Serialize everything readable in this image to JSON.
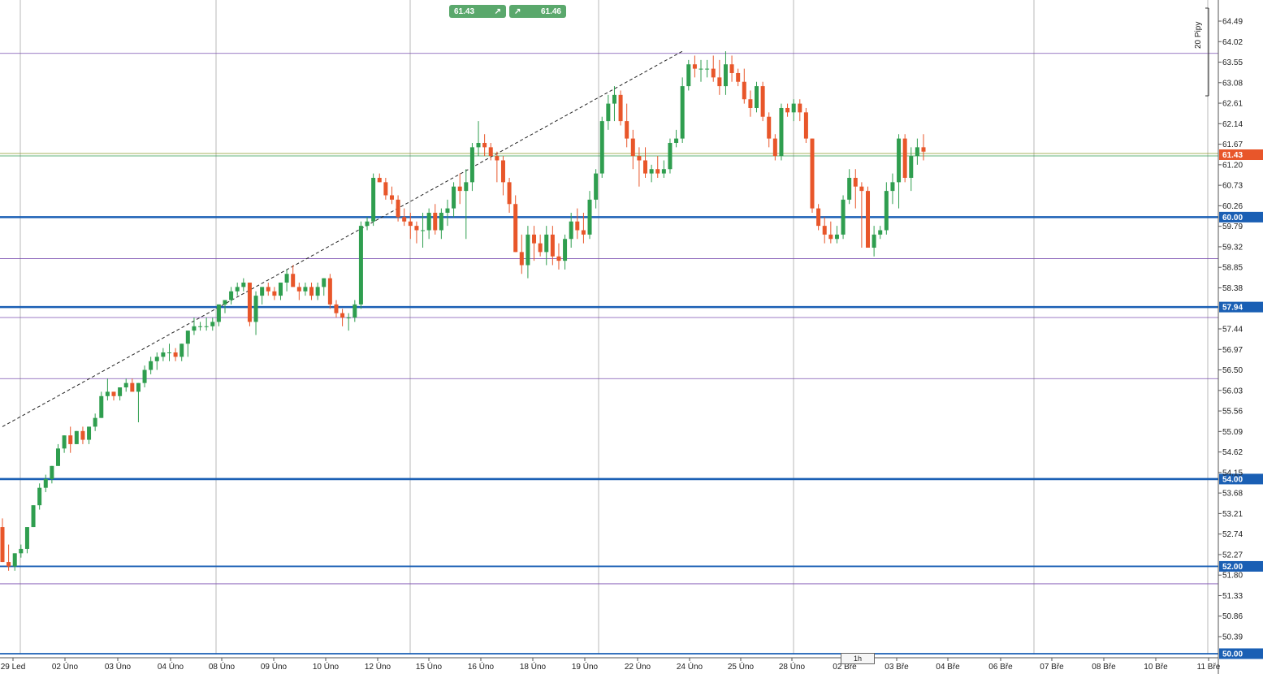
{
  "trade": {
    "sell_price": "61.43",
    "buy_price": "61.46",
    "sell_icon": "arrow-up-right-icon",
    "buy_icon": "arrow-up-right-icon"
  },
  "ruler": {
    "label": "20 Pipy"
  },
  "timeframe": {
    "label": "1h"
  },
  "chart_data": {
    "type": "candlestick",
    "title": "",
    "current_price": 61.43,
    "y_ticks": [
      64.49,
      64.02,
      63.55,
      63.08,
      62.61,
      62.14,
      61.67,
      61.2,
      60.73,
      60.26,
      59.79,
      59.32,
      58.85,
      58.38,
      57.44,
      56.97,
      56.5,
      56.03,
      55.56,
      55.09,
      54.62,
      54.15,
      53.68,
      53.21,
      52.74,
      52.27,
      51.8,
      51.33,
      50.86,
      50.39
    ],
    "x_labels": [
      "29 Led",
      "02 Úno",
      "03 Úno",
      "04 Úno",
      "08 Úno",
      "09 Úno",
      "10 Úno",
      "12 Úno",
      "15 Úno",
      "16 Úno",
      "18 Úno",
      "19 Úno",
      "22 Úno",
      "24 Úno",
      "25 Úno",
      "28 Úno",
      "02 Bře",
      "03 Bře",
      "04 Bře",
      "06 Bře",
      "07 Bře",
      "08 Bře",
      "10 Bře",
      "11 Bře"
    ],
    "levels": [
      {
        "price": 60.0,
        "label": "60.00",
        "color": "#1a5fb4",
        "style": "thick"
      },
      {
        "price": 57.94,
        "label": "57.94",
        "color": "#1a5fb4",
        "style": "thick"
      },
      {
        "price": 54.0,
        "label": "54.00",
        "color": "#1a5fb4",
        "style": "thick"
      },
      {
        "price": 52.0,
        "label": "52.00",
        "color": "#1a5fb4",
        "style": "medium"
      },
      {
        "price": 50.0,
        "label": "50.00",
        "color": "#1a5fb4",
        "style": "medium"
      },
      {
        "price": 63.75,
        "label": "",
        "color": "#7b4fb0",
        "style": "thin"
      },
      {
        "price": 59.05,
        "label": "",
        "color": "#7b4fb0",
        "style": "thin"
      },
      {
        "price": 57.7,
        "label": "",
        "color": "#7b4fb0",
        "style": "thin"
      },
      {
        "price": 56.3,
        "label": "",
        "color": "#7b4fb0",
        "style": "thin"
      },
      {
        "price": 51.6,
        "label": "",
        "color": "#7b4fb0",
        "style": "thin"
      },
      {
        "price": 61.43,
        "label": "61.43",
        "color": "#e8562a",
        "style": "price"
      }
    ],
    "trendline": {
      "from": [
        0,
        55.2
      ],
      "to": [
        110,
        63.8
      ]
    },
    "candles": [
      [
        52.9,
        53.1,
        52.1,
        52.1
      ],
      [
        52.1,
        52.5,
        51.9,
        52.0
      ],
      [
        52.0,
        52.3,
        51.9,
        52.3
      ],
      [
        52.3,
        52.5,
        52.2,
        52.4
      ],
      [
        52.4,
        52.9,
        52.3,
        52.9
      ],
      [
        52.9,
        53.4,
        52.9,
        53.4
      ],
      [
        53.4,
        53.9,
        53.3,
        53.8
      ],
      [
        53.8,
        54.1,
        53.7,
        54.0
      ],
      [
        54.0,
        54.3,
        53.9,
        54.3
      ],
      [
        54.3,
        54.8,
        54.3,
        54.7
      ],
      [
        54.7,
        55.0,
        54.6,
        55.0
      ],
      [
        55.0,
        55.2,
        54.6,
        54.8
      ],
      [
        54.8,
        55.1,
        54.8,
        55.1
      ],
      [
        55.1,
        55.2,
        54.8,
        54.9
      ],
      [
        54.9,
        55.2,
        54.8,
        55.2
      ],
      [
        55.2,
        55.5,
        55.1,
        55.4
      ],
      [
        55.4,
        56.0,
        55.4,
        55.9
      ],
      [
        55.9,
        56.3,
        55.8,
        56.0
      ],
      [
        56.0,
        56.0,
        55.8,
        55.9
      ],
      [
        55.9,
        56.1,
        55.8,
        56.1
      ],
      [
        56.1,
        56.3,
        56.0,
        56.2
      ],
      [
        56.2,
        56.3,
        56.1,
        56.0
      ],
      [
        56.0,
        56.2,
        55.3,
        56.2
      ],
      [
        56.2,
        56.6,
        56.1,
        56.5
      ],
      [
        56.5,
        56.8,
        56.4,
        56.7
      ],
      [
        56.7,
        56.9,
        56.5,
        56.8
      ],
      [
        56.8,
        57.0,
        56.7,
        56.9
      ],
      [
        56.9,
        57.1,
        56.7,
        56.9
      ],
      [
        56.9,
        57.0,
        56.7,
        56.8
      ],
      [
        56.8,
        57.1,
        56.7,
        57.1
      ],
      [
        57.1,
        57.4,
        56.8,
        57.4
      ],
      [
        57.4,
        57.7,
        57.3,
        57.5
      ],
      [
        57.5,
        57.6,
        57.4,
        57.5
      ],
      [
        57.5,
        57.7,
        57.4,
        57.5
      ],
      [
        57.5,
        57.7,
        57.4,
        57.6
      ],
      [
        57.6,
        58.0,
        57.5,
        58.0
      ],
      [
        58.0,
        58.1,
        57.8,
        58.1
      ],
      [
        58.1,
        58.4,
        58.0,
        58.3
      ],
      [
        58.3,
        58.5,
        58.2,
        58.4
      ],
      [
        58.4,
        58.6,
        58.3,
        58.5
      ],
      [
        58.5,
        58.5,
        57.5,
        57.6
      ],
      [
        57.6,
        58.3,
        57.3,
        58.2
      ],
      [
        58.2,
        58.4,
        58.0,
        58.4
      ],
      [
        58.4,
        58.5,
        58.2,
        58.3
      ],
      [
        58.3,
        58.4,
        58.1,
        58.2
      ],
      [
        58.2,
        58.5,
        58.1,
        58.5
      ],
      [
        58.5,
        58.8,
        58.3,
        58.7
      ],
      [
        58.7,
        58.9,
        58.4,
        58.4
      ],
      [
        58.4,
        58.5,
        58.1,
        58.3
      ],
      [
        58.3,
        58.5,
        58.2,
        58.4
      ],
      [
        58.4,
        58.5,
        58.1,
        58.2
      ],
      [
        58.2,
        58.5,
        58.1,
        58.4
      ],
      [
        58.4,
        58.6,
        58.2,
        58.6
      ],
      [
        58.6,
        58.7,
        57.9,
        58.0
      ],
      [
        58.0,
        58.1,
        57.7,
        57.8
      ],
      [
        57.8,
        57.9,
        57.5,
        57.7
      ],
      [
        57.7,
        57.8,
        57.4,
        57.7
      ],
      [
        57.7,
        58.1,
        57.6,
        58.0
      ],
      [
        58.0,
        59.9,
        57.9,
        59.8
      ],
      [
        59.8,
        60.0,
        59.7,
        59.9
      ],
      [
        59.9,
        61.0,
        59.8,
        60.9
      ],
      [
        60.9,
        61.0,
        60.8,
        60.8
      ],
      [
        60.8,
        60.9,
        60.4,
        60.5
      ],
      [
        60.5,
        60.7,
        60.3,
        60.4
      ],
      [
        60.4,
        60.5,
        59.9,
        60.0
      ],
      [
        60.0,
        60.2,
        59.8,
        59.9
      ],
      [
        59.9,
        60.1,
        59.5,
        59.8
      ],
      [
        59.8,
        59.9,
        59.4,
        59.7
      ],
      [
        59.7,
        60.1,
        59.3,
        59.7
      ],
      [
        59.7,
        60.2,
        59.5,
        60.1
      ],
      [
        60.1,
        60.3,
        59.6,
        59.7
      ],
      [
        59.7,
        60.2,
        59.5,
        60.1
      ],
      [
        60.1,
        60.4,
        59.8,
        60.2
      ],
      [
        60.2,
        60.8,
        60.0,
        60.7
      ],
      [
        60.7,
        61.0,
        60.3,
        60.6
      ],
      [
        60.6,
        61.1,
        59.5,
        60.8
      ],
      [
        60.8,
        61.7,
        60.6,
        61.6
      ],
      [
        61.6,
        62.2,
        61.4,
        61.7
      ],
      [
        61.7,
        61.9,
        61.4,
        61.6
      ],
      [
        61.6,
        61.7,
        61.3,
        61.4
      ],
      [
        61.4,
        61.5,
        60.8,
        61.3
      ],
      [
        61.3,
        61.4,
        60.5,
        60.8
      ],
      [
        60.8,
        60.9,
        60.1,
        60.3
      ],
      [
        60.3,
        60.5,
        59.2,
        59.2
      ],
      [
        59.2,
        59.6,
        58.7,
        58.9
      ],
      [
        58.9,
        59.8,
        58.6,
        59.6
      ],
      [
        59.6,
        59.8,
        59.0,
        59.4
      ],
      [
        59.4,
        59.6,
        59.1,
        59.2
      ],
      [
        59.2,
        59.8,
        58.9,
        59.6
      ],
      [
        59.6,
        59.8,
        58.9,
        59.1
      ],
      [
        59.1,
        59.4,
        58.8,
        59.0
      ],
      [
        59.0,
        59.6,
        58.8,
        59.5
      ],
      [
        59.5,
        60.1,
        59.3,
        59.9
      ],
      [
        59.9,
        60.2,
        59.5,
        59.7
      ],
      [
        59.7,
        60.1,
        59.4,
        59.6
      ],
      [
        59.6,
        60.6,
        59.5,
        60.4
      ],
      [
        60.4,
        61.1,
        60.2,
        61.0
      ],
      [
        61.0,
        62.3,
        60.9,
        62.2
      ],
      [
        62.2,
        62.8,
        62.0,
        62.6
      ],
      [
        62.6,
        63.0,
        62.2,
        62.8
      ],
      [
        62.8,
        62.9,
        62.1,
        62.2
      ],
      [
        62.2,
        62.6,
        61.6,
        61.8
      ],
      [
        61.8,
        62.0,
        61.1,
        61.4
      ],
      [
        61.4,
        61.6,
        60.7,
        61.3
      ],
      [
        61.3,
        61.6,
        60.9,
        61.0
      ],
      [
        61.0,
        61.2,
        60.8,
        61.1
      ],
      [
        61.1,
        61.4,
        60.9,
        61.0
      ],
      [
        61.0,
        61.3,
        60.9,
        61.1
      ],
      [
        61.1,
        61.8,
        61.0,
        61.7
      ],
      [
        61.7,
        62.0,
        61.6,
        61.8
      ],
      [
        61.8,
        63.2,
        61.7,
        63.0
      ],
      [
        63.0,
        63.6,
        62.9,
        63.5
      ],
      [
        63.5,
        63.7,
        63.2,
        63.4
      ],
      [
        63.4,
        63.6,
        63.1,
        63.4
      ],
      [
        63.4,
        63.6,
        63.2,
        63.4
      ],
      [
        63.4,
        63.7,
        63.1,
        63.2
      ],
      [
        63.2,
        63.6,
        62.8,
        63.0
      ],
      [
        63.0,
        63.8,
        62.8,
        63.5
      ],
      [
        63.5,
        63.7,
        63.1,
        63.3
      ],
      [
        63.3,
        63.4,
        63.0,
        63.1
      ],
      [
        63.1,
        63.4,
        62.6,
        62.7
      ],
      [
        62.7,
        62.9,
        62.3,
        62.5
      ],
      [
        62.5,
        63.1,
        62.4,
        63.0
      ],
      [
        63.0,
        63.1,
        62.2,
        62.3
      ],
      [
        62.3,
        62.4,
        61.6,
        61.8
      ],
      [
        61.8,
        61.9,
        61.3,
        61.4
      ],
      [
        61.4,
        62.6,
        61.3,
        62.5
      ],
      [
        62.5,
        62.6,
        62.3,
        62.4
      ],
      [
        62.4,
        62.7,
        62.2,
        62.6
      ],
      [
        62.6,
        62.7,
        62.2,
        62.4
      ],
      [
        62.4,
        62.5,
        61.7,
        61.8
      ],
      [
        61.8,
        61.8,
        60.1,
        60.2
      ],
      [
        60.2,
        60.3,
        59.7,
        59.8
      ],
      [
        59.8,
        60.0,
        59.4,
        59.6
      ],
      [
        59.6,
        59.9,
        59.4,
        59.5
      ],
      [
        59.5,
        59.8,
        59.4,
        59.6
      ],
      [
        59.6,
        60.5,
        59.5,
        60.4
      ],
      [
        60.4,
        61.1,
        60.3,
        60.9
      ],
      [
        60.9,
        61.1,
        60.2,
        60.7
      ],
      [
        60.7,
        60.8,
        59.3,
        60.6
      ],
      [
        60.6,
        60.7,
        59.4,
        59.3
      ],
      [
        59.3,
        59.8,
        59.1,
        59.6
      ],
      [
        59.6,
        59.8,
        59.5,
        59.7
      ],
      [
        59.7,
        60.8,
        59.6,
        60.6
      ],
      [
        60.6,
        61.0,
        60.3,
        60.8
      ],
      [
        60.8,
        61.9,
        60.2,
        61.8
      ],
      [
        61.8,
        61.9,
        60.8,
        60.9
      ],
      [
        60.9,
        61.6,
        60.6,
        61.4
      ],
      [
        61.4,
        61.8,
        61.2,
        61.6
      ],
      [
        61.6,
        61.9,
        61.3,
        61.5
      ]
    ],
    "colors": {
      "up": "#2f9e4f",
      "down": "#e8562a",
      "grid": "#8a8a8a",
      "background": "#ffffff"
    }
  }
}
